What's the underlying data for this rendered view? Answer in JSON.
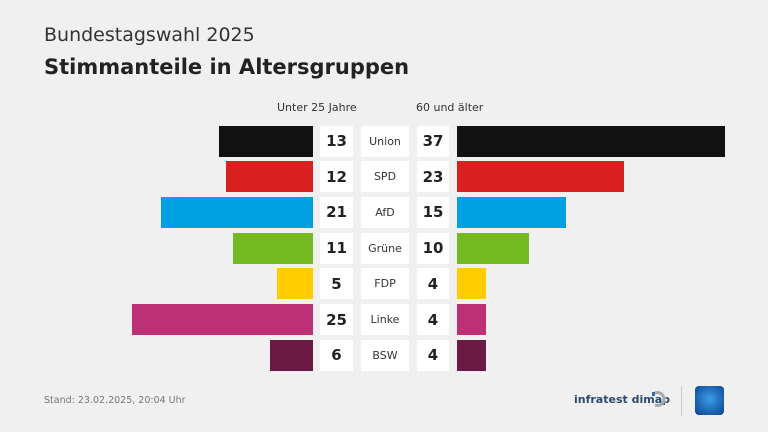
{
  "header": {
    "supertitle": "Bundestagswahl 2025",
    "title": "Stimmanteile in Altersgruppen"
  },
  "chart_data": {
    "type": "bar",
    "orientation": "horizontal-butterfly",
    "categories": [
      "Union",
      "SPD",
      "AfD",
      "Grüne",
      "FDP",
      "Linke",
      "BSW"
    ],
    "series": [
      {
        "name": "Unter 25 Jahre",
        "values": [
          13,
          12,
          21,
          11,
          5,
          25,
          6
        ]
      },
      {
        "name": "60 und älter",
        "values": [
          37,
          23,
          15,
          10,
          4,
          4,
          4
        ]
      }
    ],
    "colors": [
      "#111111",
      "#d7201f",
      "#00a0e1",
      "#74b920",
      "#ffcc00",
      "#be3075",
      "#6b1a43"
    ],
    "unit": "%"
  },
  "footer": {
    "stand": "Stand:  23.02.2025, 20:04 Uhr",
    "brand": "infratest dimap"
  }
}
